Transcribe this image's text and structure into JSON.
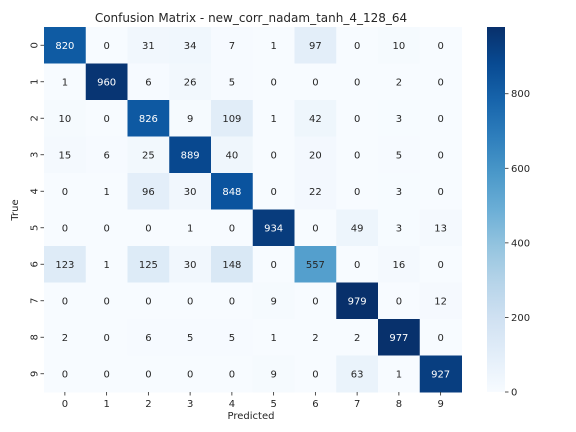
{
  "chart_data": {
    "type": "heatmap",
    "title": "Confusion Matrix - new_corr_nadam_tanh_4_128_64",
    "xlabel": "Predicted",
    "ylabel": "True",
    "x_tick_labels": [
      "0",
      "1",
      "2",
      "3",
      "4",
      "5",
      "6",
      "7",
      "8",
      "9"
    ],
    "y_tick_labels": [
      "0",
      "1",
      "2",
      "3",
      "4",
      "5",
      "6",
      "7",
      "8",
      "9"
    ],
    "matrix": [
      [
        820,
        0,
        31,
        34,
        7,
        1,
        97,
        0,
        10,
        0
      ],
      [
        1,
        960,
        6,
        26,
        5,
        0,
        0,
        0,
        2,
        0
      ],
      [
        10,
        0,
        826,
        9,
        109,
        1,
        42,
        0,
        3,
        0
      ],
      [
        15,
        6,
        25,
        889,
        40,
        0,
        20,
        0,
        5,
        0
      ],
      [
        0,
        1,
        96,
        30,
        848,
        0,
        22,
        0,
        3,
        0
      ],
      [
        0,
        0,
        0,
        1,
        0,
        934,
        0,
        49,
        3,
        13
      ],
      [
        123,
        1,
        125,
        30,
        148,
        0,
        557,
        0,
        16,
        0
      ],
      [
        0,
        0,
        0,
        0,
        0,
        9,
        0,
        979,
        0,
        12
      ],
      [
        2,
        0,
        6,
        5,
        5,
        1,
        2,
        2,
        977,
        0
      ],
      [
        0,
        0,
        0,
        0,
        0,
        9,
        0,
        63,
        1,
        927
      ]
    ],
    "colormap": "Blues",
    "colorbar": {
      "vmin": 0,
      "vmax": 979,
      "ticks": [
        0,
        200,
        400,
        600,
        800
      ],
      "tick_labels": [
        "0",
        "200",
        "400",
        "600",
        "800"
      ]
    },
    "grid": false
  }
}
